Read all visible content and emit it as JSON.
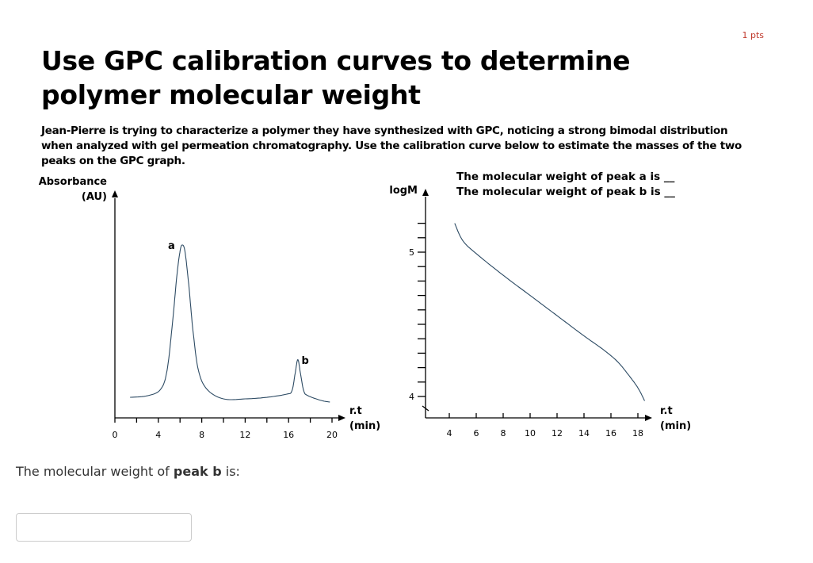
{
  "points_label": "1 pts",
  "title": "Use GPC calibration curves to determine polymer molecular weight",
  "description": "Jean-Pierre is trying to characterize a polymer they have synthesized with GPC, noticing a strong bimodal distribution when analyzed with gel permeation chromatography. Use the calibration curve below to estimate the masses of the two peaks on the GPC graph.",
  "question": {
    "prefix": "The molecular weight of ",
    "bold": "peak b",
    "suffix": " is:",
    "answer_value": ""
  },
  "chart_data": [
    {
      "type": "line",
      "ylabel_line1": "Absorbance",
      "ylabel_line2": "(AU)",
      "xlabel_line1": "r.t",
      "xlabel_line2": "(min)",
      "xlim": [
        0,
        20
      ],
      "xticks": [
        0,
        4,
        8,
        12,
        16,
        20
      ],
      "minor_xtick_step": 2,
      "annotations": [
        {
          "text": "a",
          "x": 6.2
        },
        {
          "text": "b",
          "x": 16.9
        }
      ],
      "series": [
        {
          "color": "#2c4a63",
          "x": [
            1.4,
            3,
            4.2,
            4.8,
            5.3,
            5.7,
            6.0,
            6.2,
            6.45,
            6.8,
            7.2,
            7.7,
            8.5,
            10,
            12,
            14,
            15.8,
            16.3,
            16.6,
            16.85,
            17.1,
            17.4,
            17.8,
            19,
            19.8
          ],
          "y": [
            0.03,
            0.04,
            0.08,
            0.2,
            0.5,
            0.8,
            0.96,
            1.0,
            0.96,
            0.75,
            0.45,
            0.2,
            0.08,
            0.02,
            0.02,
            0.03,
            0.05,
            0.07,
            0.18,
            0.27,
            0.18,
            0.07,
            0.04,
            0.01,
            0.0
          ]
        }
      ]
    },
    {
      "type": "line",
      "ylabel": "logM",
      "xlabel_line1": "r.t",
      "xlabel_line2": "(min)",
      "xlim": [
        2.2,
        19
      ],
      "ylim": [
        3.85,
        5.45
      ],
      "xticks": [
        4,
        6,
        8,
        10,
        12,
        14,
        16,
        18
      ],
      "yticks": [
        4,
        5
      ],
      "minor_ytick_step": 0.1,
      "question_lines": [
        "The molecular weight of peak a is __",
        "The molecular weight of peak b is __"
      ],
      "series": [
        {
          "color": "#2c4a63",
          "x": [
            4.4,
            5,
            6,
            8,
            10,
            12,
            14,
            15.5,
            16.5,
            17.3,
            18,
            18.5
          ],
          "y": [
            5.2,
            5.08,
            4.99,
            4.84,
            4.7,
            4.56,
            4.42,
            4.32,
            4.24,
            4.15,
            4.06,
            3.97
          ]
        }
      ]
    }
  ]
}
